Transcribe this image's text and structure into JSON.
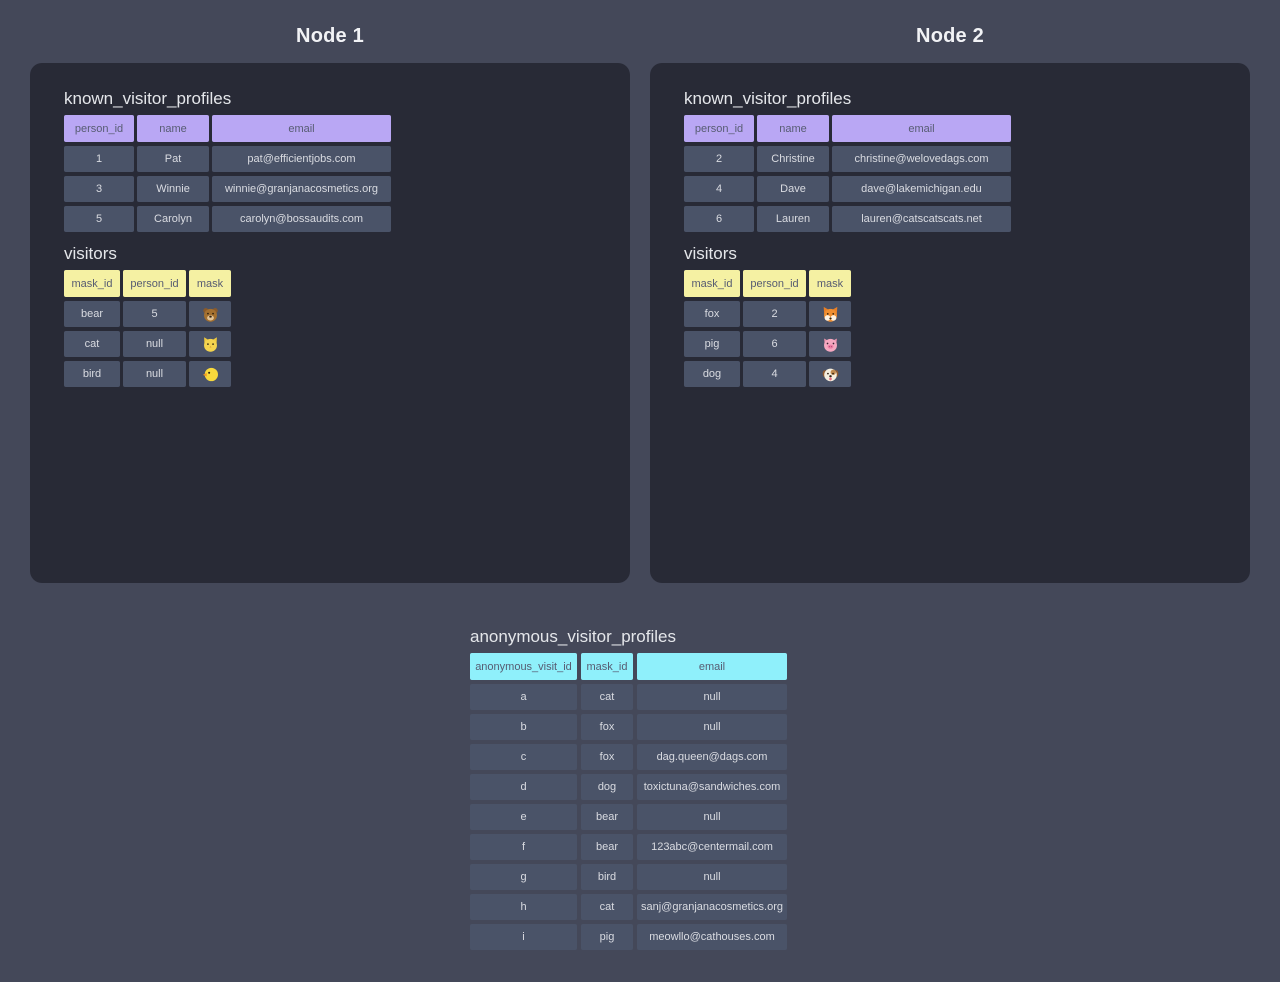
{
  "colors": {
    "page_bg": "#444859",
    "card_bg": "#282a36",
    "cell_bg": "#4a5368",
    "cell_text": "#d9dbe1",
    "header_text": "#575c72",
    "purple": "#b9a7f4",
    "yellow": "#f5f1a3",
    "cyan": "#8ff0fb",
    "table_title_text": "#e4e6ea",
    "node_title_text": "#f2f3f6"
  },
  "nodes": [
    {
      "title": "Node 1",
      "tables": [
        {
          "name": "known_visitor_profiles",
          "theme": "purple",
          "columns": [
            "person_id",
            "name",
            "email"
          ],
          "rows": [
            [
              "1",
              "Pat",
              "pat@efficientjobs.com"
            ],
            [
              "3",
              "Winnie",
              "winnie@granjanacosmetics.org"
            ],
            [
              "5",
              "Carolyn",
              "carolyn@bossaudits.com"
            ]
          ]
        },
        {
          "name": "visitors",
          "theme": "yellow",
          "columns": [
            "mask_id",
            "person_id",
            "mask"
          ],
          "rows": [
            [
              "bear",
              "5",
              {
                "emoji": "bear-face",
                "char": "🐻"
              }
            ],
            [
              "cat",
              "null",
              {
                "emoji": "cat-face",
                "char": "🐱"
              }
            ],
            [
              "bird",
              "null",
              {
                "emoji": "baby-chick",
                "char": "🐤"
              }
            ]
          ]
        }
      ]
    },
    {
      "title": "Node 2",
      "tables": [
        {
          "name": "known_visitor_profiles",
          "theme": "purple",
          "columns": [
            "person_id",
            "name",
            "email"
          ],
          "rows": [
            [
              "2",
              "Christine",
              "christine@welovedags.com"
            ],
            [
              "4",
              "Dave",
              "dave@lakemichigan.edu"
            ],
            [
              "6",
              "Lauren",
              "lauren@catscatscats.net"
            ]
          ]
        },
        {
          "name": "visitors",
          "theme": "yellow",
          "columns": [
            "mask_id",
            "person_id",
            "mask"
          ],
          "rows": [
            [
              "fox",
              "2",
              {
                "emoji": "fox-face",
                "char": "🦊"
              }
            ],
            [
              "pig",
              "6",
              {
                "emoji": "pig-face",
                "char": "🐷"
              }
            ],
            [
              "dog",
              "4",
              {
                "emoji": "dog-face",
                "char": "🐶"
              }
            ]
          ]
        }
      ]
    }
  ],
  "anonymous_table": {
    "name": "anonymous_visitor_profiles",
    "theme": "cyan",
    "columns": [
      "anonymous_visit_id",
      "mask_id",
      "email"
    ],
    "rows": [
      [
        "a",
        "cat",
        "null"
      ],
      [
        "b",
        "fox",
        "null"
      ],
      [
        "c",
        "fox",
        "dag.queen@dags.com"
      ],
      [
        "d",
        "dog",
        "toxictuna@sandwiches.com"
      ],
      [
        "e",
        "bear",
        "null"
      ],
      [
        "f",
        "bear",
        "123abc@centermail.com"
      ],
      [
        "g",
        "bird",
        "null"
      ],
      [
        "h",
        "cat",
        "sanj@granjanacosmetics.org"
      ],
      [
        "i",
        "pig",
        "meowllo@cathouses.com"
      ]
    ]
  }
}
